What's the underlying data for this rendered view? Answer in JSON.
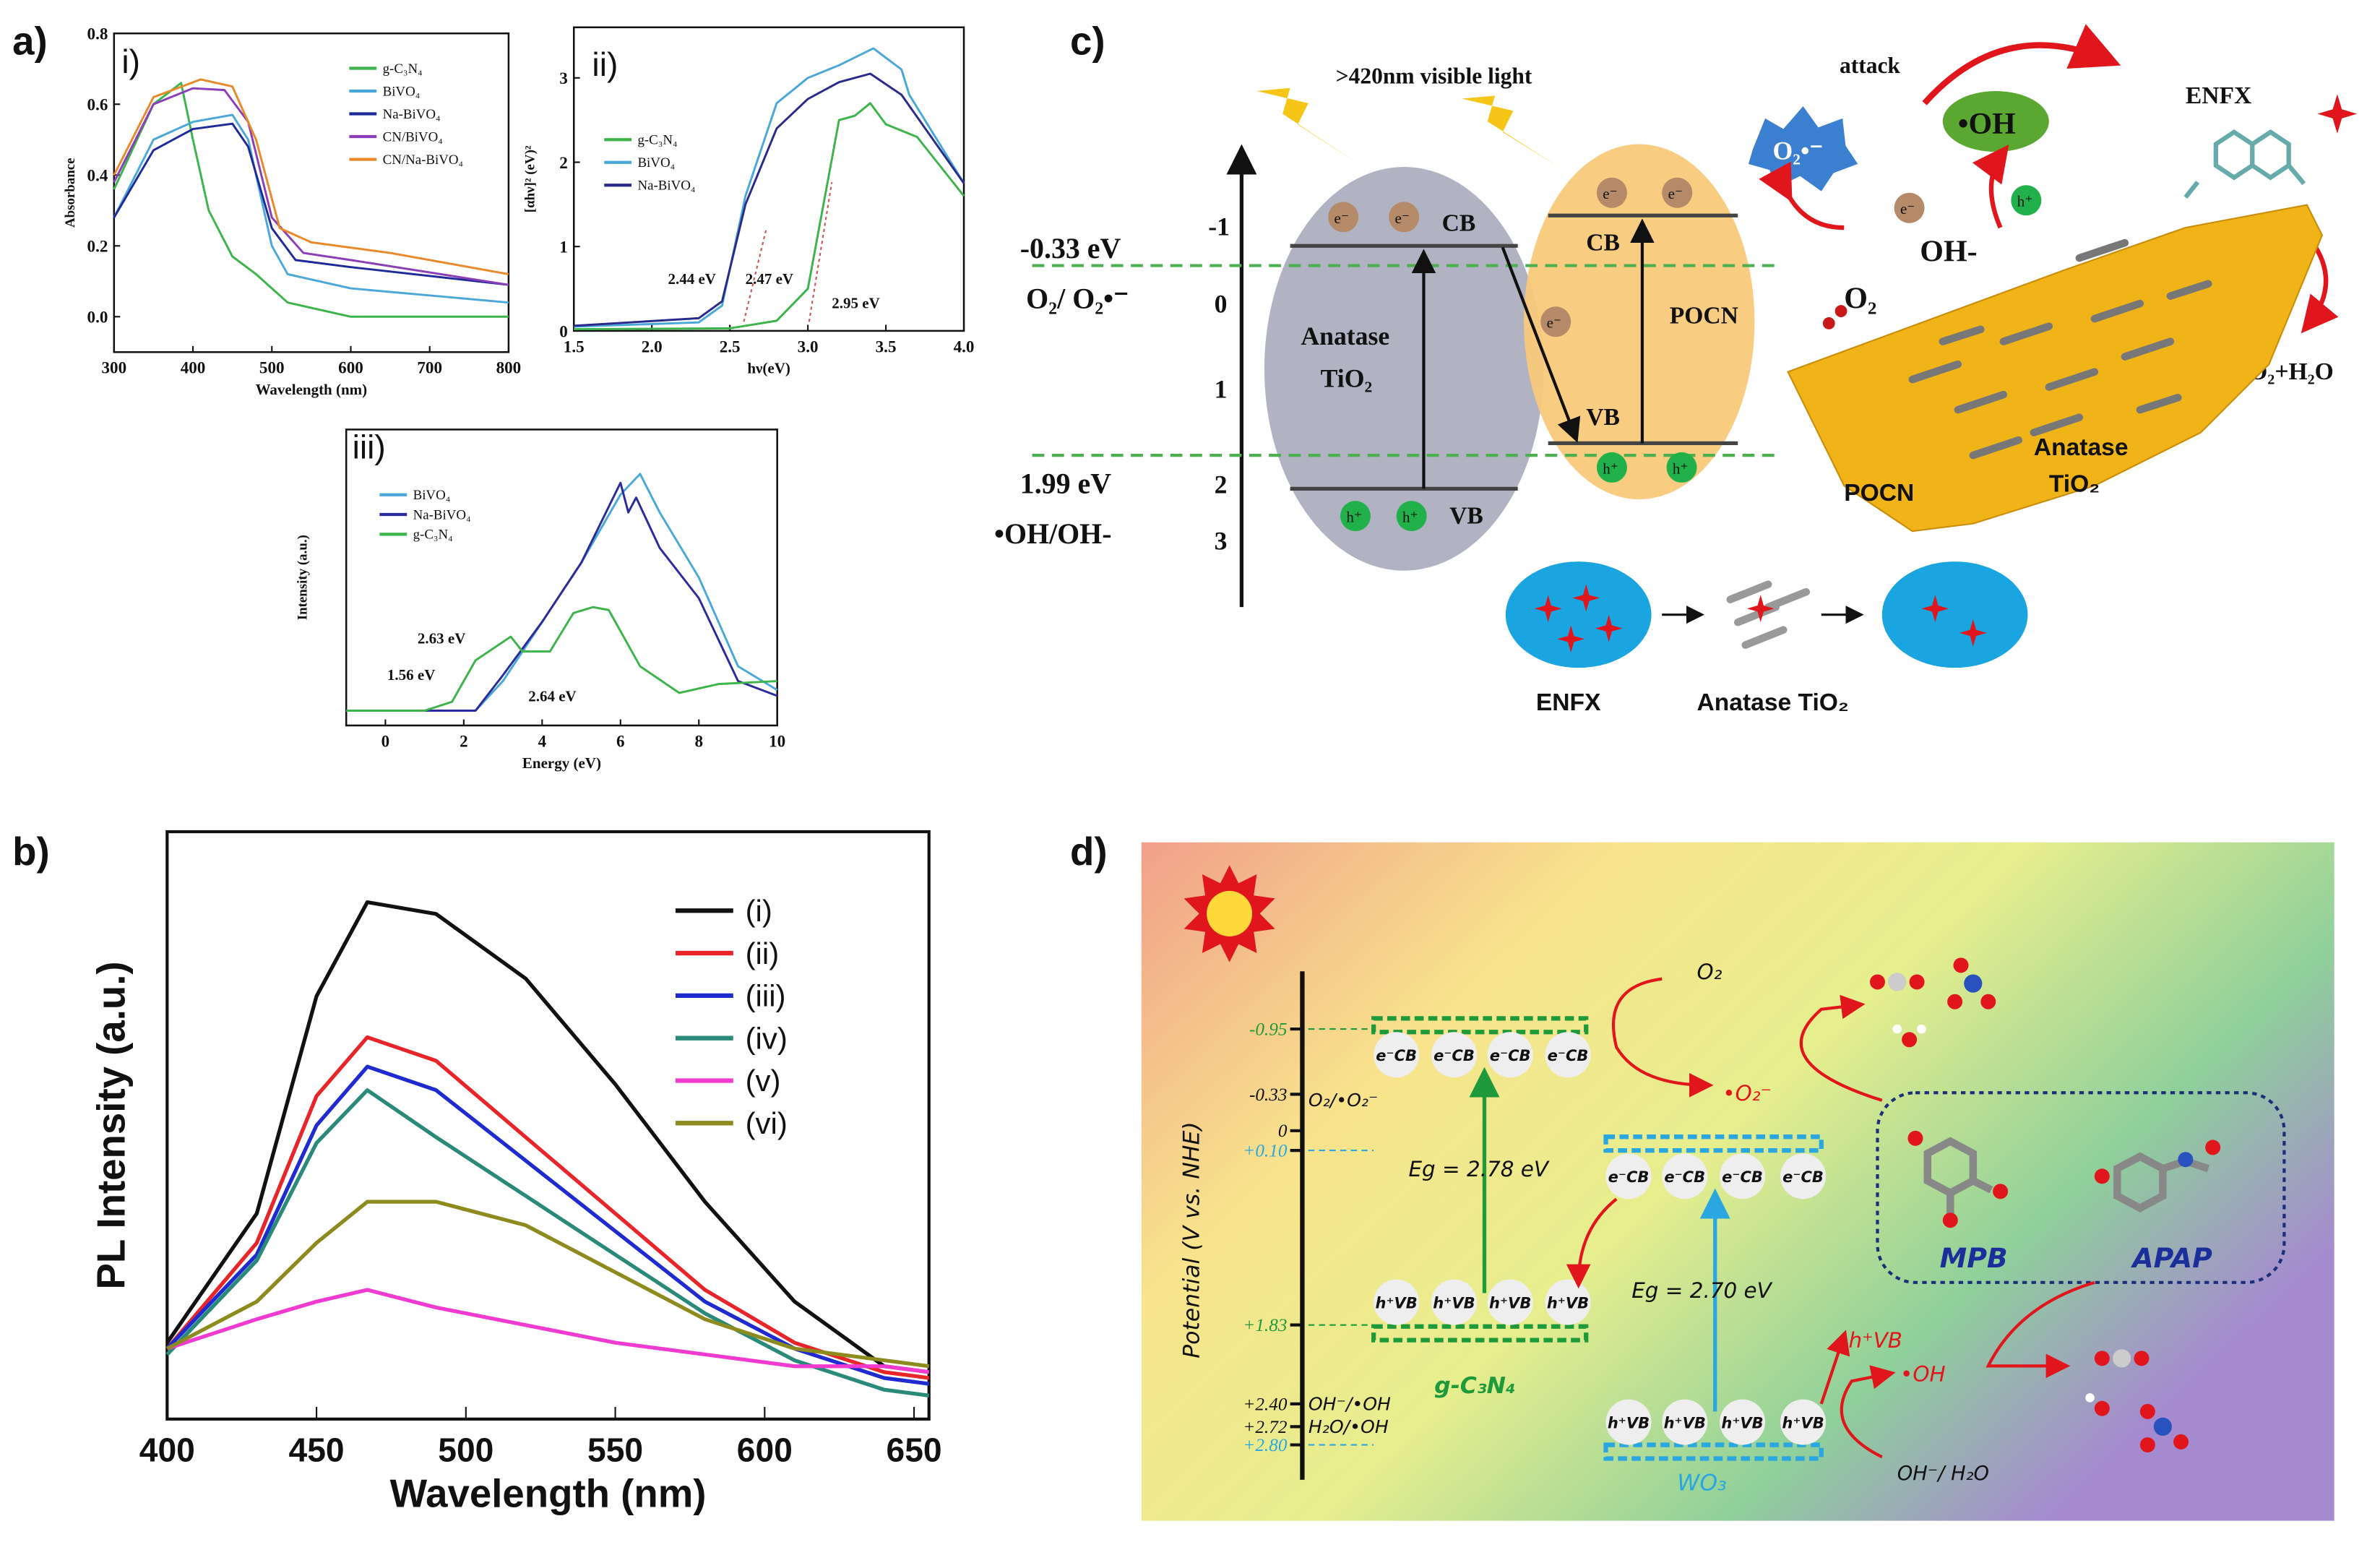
{
  "panel_labels": {
    "a": "a)",
    "b": "b)",
    "c": "c)",
    "d": "d)"
  },
  "chart_data": [
    {
      "id": "a-i",
      "type": "line",
      "subpanel_label": "i)",
      "xlabel": "Wavelength (nm)",
      "ylabel": "Absorbance",
      "xlim": [
        300,
        800
      ],
      "ylim": [
        -0.1,
        0.8
      ],
      "xticks": [
        300,
        400,
        500,
        600,
        700,
        800
      ],
      "yticks": [
        0.0,
        0.2,
        0.4,
        0.6,
        0.8
      ],
      "ytick_labels": [
        "0.0",
        "0.2",
        "0.4",
        "0.6",
        "0.8"
      ],
      "legend": "top-right",
      "series": [
        {
          "name": "g-C₃N₄",
          "color": "#3cb44b",
          "x": [
            300,
            350,
            385,
            400,
            420,
            450,
            480,
            520,
            600,
            800
          ],
          "y": [
            0.36,
            0.6,
            0.66,
            0.5,
            0.3,
            0.17,
            0.12,
            0.04,
            0.0,
            0.0
          ]
        },
        {
          "name": "BiVO₄",
          "color": "#4aa8d8",
          "x": [
            300,
            350,
            400,
            450,
            470,
            500,
            520,
            600,
            800
          ],
          "y": [
            0.28,
            0.5,
            0.55,
            0.57,
            0.5,
            0.2,
            0.12,
            0.08,
            0.04
          ]
        },
        {
          "name": "Na-BiVO₄",
          "color": "#1e2a9a",
          "x": [
            300,
            350,
            400,
            450,
            470,
            500,
            530,
            600,
            800
          ],
          "y": [
            0.28,
            0.47,
            0.53,
            0.545,
            0.48,
            0.25,
            0.16,
            0.14,
            0.09
          ]
        },
        {
          "name": "CN/BiVO₄",
          "color": "#8a3fb8",
          "x": [
            300,
            350,
            400,
            440,
            470,
            500,
            540,
            600,
            800
          ],
          "y": [
            0.38,
            0.6,
            0.645,
            0.64,
            0.55,
            0.28,
            0.18,
            0.16,
            0.09
          ]
        },
        {
          "name": "CN/Na-BiVO₄",
          "color": "#e88a2a",
          "x": [
            300,
            350,
            410,
            450,
            480,
            510,
            550,
            650,
            800
          ],
          "y": [
            0.4,
            0.62,
            0.67,
            0.65,
            0.5,
            0.25,
            0.21,
            0.18,
            0.12
          ]
        }
      ]
    },
    {
      "id": "a-ii",
      "type": "line",
      "subpanel_label": "ii)",
      "xlabel": "hν(eV)",
      "ylabel": "[αhν]² (eV)²",
      "xlim": [
        1.5,
        4.0
      ],
      "ylim": [
        0,
        3.6
      ],
      "xticks": [
        1.5,
        2.0,
        2.5,
        3.0,
        3.5,
        4.0
      ],
      "xtick_labels": [
        "1.5",
        "2.0",
        "2.5",
        "3.0",
        "3.5",
        "4.0"
      ],
      "yticks": [
        0,
        1,
        2,
        3
      ],
      "ytick_labels": [
        "0",
        "1",
        "2",
        "3"
      ],
      "legend": "center-left",
      "annotations": [
        "2.44 eV",
        "2.47 eV",
        "2.95 eV"
      ],
      "series": [
        {
          "name": "g-C₃N₄",
          "color": "#3cb44b",
          "x": [
            1.5,
            2.5,
            2.8,
            3.0,
            3.2,
            3.3,
            3.4,
            3.5,
            3.7,
            4.0
          ],
          "y": [
            0.02,
            0.03,
            0.12,
            0.5,
            2.5,
            2.55,
            2.7,
            2.45,
            2.3,
            1.6
          ]
        },
        {
          "name": "BiVO₄",
          "color": "#4aa8d8",
          "x": [
            1.5,
            2.3,
            2.45,
            2.6,
            2.8,
            3.0,
            3.2,
            3.42,
            3.6,
            3.65,
            4.0
          ],
          "y": [
            0.05,
            0.1,
            0.3,
            1.6,
            2.7,
            3.0,
            3.15,
            3.35,
            3.1,
            2.8,
            1.75
          ]
        },
        {
          "name": "Na-BiVO₄",
          "color": "#2a2a8a",
          "x": [
            1.5,
            2.3,
            2.45,
            2.6,
            2.8,
            3.0,
            3.2,
            3.4,
            3.6,
            4.0
          ],
          "y": [
            0.06,
            0.15,
            0.35,
            1.5,
            2.4,
            2.75,
            2.95,
            3.05,
            2.8,
            1.75
          ]
        }
      ]
    },
    {
      "id": "a-iii",
      "type": "line",
      "subpanel_label": "iii)",
      "xlabel": "Energy (eV)",
      "ylabel": "Intensity (a.u.)",
      "xlim": [
        -1,
        10
      ],
      "ylim": [
        0,
        1
      ],
      "xticks": [
        0,
        2,
        4,
        6,
        8,
        10
      ],
      "xtick_labels": [
        "0",
        "2",
        "4",
        "6",
        "8",
        "10"
      ],
      "legend": "top-left",
      "annotations": [
        "2.63 eV",
        "1.56 eV",
        "2.64 eV"
      ],
      "series": [
        {
          "name": "BiVO₄",
          "color": "#4aa8d8",
          "x": [
            -1,
            2.3,
            3,
            4,
            5,
            6,
            6.5,
            7,
            8,
            9,
            10
          ],
          "y": [
            0.05,
            0.05,
            0.15,
            0.35,
            0.55,
            0.78,
            0.85,
            0.72,
            0.5,
            0.2,
            0.12
          ]
        },
        {
          "name": "Na-BiVO₄",
          "color": "#2a2a9a",
          "x": [
            -1,
            2.3,
            3,
            4,
            5,
            6,
            6.2,
            6.4,
            7,
            8,
            9,
            10
          ],
          "y": [
            0.05,
            0.05,
            0.17,
            0.35,
            0.55,
            0.82,
            0.72,
            0.77,
            0.6,
            0.43,
            0.15,
            0.1
          ]
        },
        {
          "name": "g-C₃N₄",
          "color": "#3cb44b",
          "x": [
            -1,
            1,
            1.7,
            2.3,
            3.2,
            3.5,
            4.2,
            4.8,
            5.3,
            5.7,
            6.5,
            7.5,
            8.5,
            10
          ],
          "y": [
            0.05,
            0.05,
            0.08,
            0.22,
            0.3,
            0.25,
            0.25,
            0.38,
            0.4,
            0.39,
            0.2,
            0.11,
            0.14,
            0.15
          ]
        }
      ]
    },
    {
      "id": "b",
      "type": "line",
      "xlabel": "Wavelength (nm)",
      "ylabel": "PL Intensity (a.u.)",
      "xlim": [
        400,
        655
      ],
      "ylim": [
        0,
        1
      ],
      "xticks": [
        400,
        450,
        500,
        550,
        600,
        650
      ],
      "xtick_labels": [
        "400",
        "450",
        "500",
        "550",
        "600",
        "650"
      ],
      "legend": "top-right",
      "series": [
        {
          "name": "(i)",
          "color": "#111111",
          "x": [
            400,
            430,
            450,
            467,
            490,
            520,
            550,
            580,
            610,
            640,
            655
          ],
          "y": [
            0.13,
            0.35,
            0.72,
            0.88,
            0.86,
            0.75,
            0.57,
            0.37,
            0.2,
            0.09,
            0.08
          ]
        },
        {
          "name": "(ii)",
          "color": "#e8262a",
          "x": [
            400,
            430,
            450,
            467,
            490,
            520,
            550,
            580,
            610,
            640,
            655
          ],
          "y": [
            0.12,
            0.3,
            0.55,
            0.65,
            0.61,
            0.48,
            0.35,
            0.22,
            0.13,
            0.08,
            0.07
          ]
        },
        {
          "name": "(iii)",
          "color": "#1f2ad0",
          "x": [
            400,
            430,
            450,
            467,
            490,
            520,
            550,
            580,
            610,
            640,
            655
          ],
          "y": [
            0.12,
            0.28,
            0.5,
            0.6,
            0.56,
            0.44,
            0.32,
            0.2,
            0.12,
            0.07,
            0.06
          ]
        },
        {
          "name": "(iv)",
          "color": "#2a8a7a",
          "x": [
            400,
            430,
            450,
            467,
            490,
            520,
            550,
            580,
            610,
            640,
            655
          ],
          "y": [
            0.11,
            0.27,
            0.47,
            0.56,
            0.48,
            0.38,
            0.28,
            0.18,
            0.1,
            0.05,
            0.04
          ]
        },
        {
          "name": "(v)",
          "color": "#f03ad0",
          "x": [
            400,
            430,
            450,
            467,
            490,
            520,
            550,
            580,
            610,
            640,
            655
          ],
          "y": [
            0.12,
            0.17,
            0.2,
            0.22,
            0.19,
            0.16,
            0.13,
            0.11,
            0.09,
            0.09,
            0.08
          ]
        },
        {
          "name": "(vi)",
          "color": "#8d8a1e",
          "x": [
            400,
            430,
            450,
            467,
            490,
            520,
            550,
            580,
            610,
            640,
            655
          ],
          "y": [
            0.12,
            0.2,
            0.3,
            0.37,
            0.37,
            0.33,
            0.25,
            0.17,
            0.12,
            0.1,
            0.09
          ]
        }
      ]
    }
  ],
  "panel_c": {
    "light_label": ">420nm  visible light",
    "attack": "attack",
    "oh_radical": "•OH",
    "o2_radical": "O₂•⁻",
    "e": "e⁻",
    "h": "h⁺",
    "oh_minus": "OH-",
    "o2": "O₂",
    "enfx_top": "ENFX",
    "products": "CO₂+H₂O",
    "cb": "CB",
    "vb": "VB",
    "anatase": "Anatase",
    "tio2": "TiO₂",
    "pocn": "POCN",
    "sheet_pocn": "POCN",
    "sheet_anatase": "Anatase",
    "sheet_tio2": "TiO₂",
    "pot1": "-0.33 eV",
    "pot1_couple": "O₂/ O₂•⁻",
    "pot2": "1.99 eV",
    "pot2_couple": "•OH/OH-",
    "axis_ticks": [
      "-1",
      "0",
      "1",
      "2",
      "3"
    ],
    "enfx_bottom": "ENFX",
    "anatase_bottom": "Anatase TiO₂"
  },
  "panel_d": {
    "axis_label": "Potential (V vs. NHE)",
    "ticks": [
      {
        "label": "-0.95",
        "color": "#1e9a3a"
      },
      {
        "label": "-0.33",
        "color": "#111111"
      },
      {
        "label": "0",
        "color": "#111111"
      },
      {
        "label": "+0.10",
        "color": "#2aa6e0"
      },
      {
        "label": "+1.83",
        "color": "#1e9a3a"
      },
      {
        "label": "+2.40",
        "color": "#111111"
      },
      {
        "label": "+2.72",
        "color": "#111111"
      },
      {
        "label": "+2.80",
        "color": "#2aa6e0"
      }
    ],
    "couple1": "O₂/•O₂⁻",
    "couple2": "OH⁻/•OH",
    "couple3": "H₂O/•OH",
    "e_cb": "e⁻CB",
    "h_vb": "h⁺VB",
    "eg1": "Eg = 2.78 eV",
    "eg2": "Eg = 2.70 eV",
    "material1": "g-C₃N₄",
    "material2": "WO₃",
    "o2": "O₂",
    "o2_radical": "•O₂⁻",
    "h_vb_free": "h⁺VB",
    "oh_radical": "•OH",
    "oh_h2o": "OH⁻/ H₂O",
    "mpb": "MPB",
    "apap": "APAP"
  }
}
